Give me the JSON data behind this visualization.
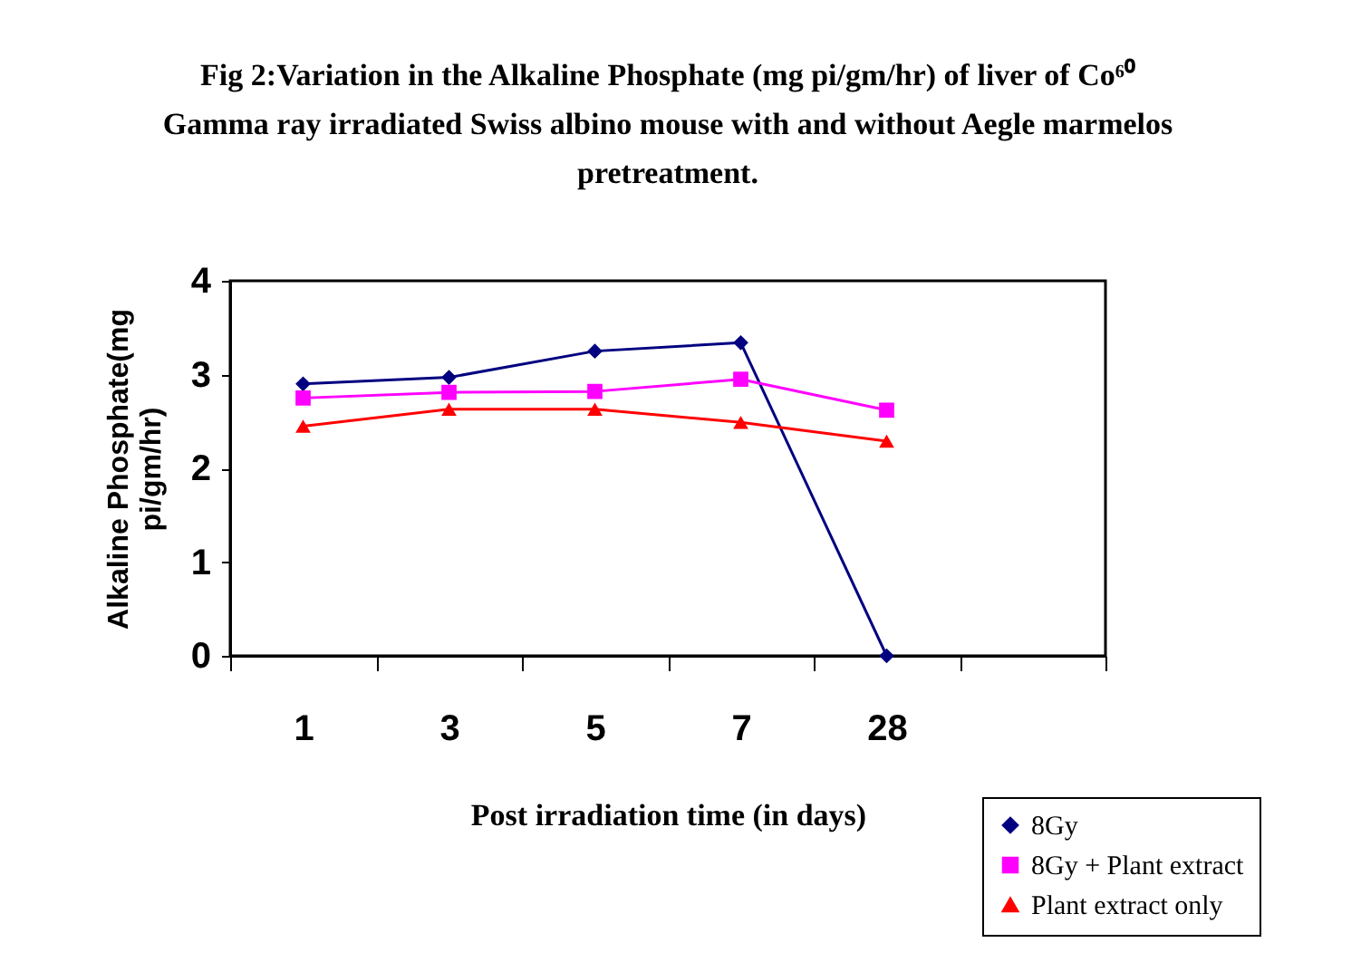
{
  "chart_data": {
    "type": "line",
    "title": "Fig 2:Variation in the Alkaline Phosphate (mg pi/gm/hr) of liver of Co⁶⁰ Gamma ray irradiated Swiss albino mouse with and without Aegle marmelos pretreatment.",
    "xlabel": "Post irradiation time (in days)",
    "ylabel": "Alkaline Phosphate(mg pi/gm/hr)",
    "categories": [
      "1",
      "3",
      "5",
      "7",
      "28",
      null
    ],
    "series": [
      {
        "name": "8Gy",
        "color": "#000080",
        "marker": "diamond",
        "values": [
          2.9,
          2.97,
          3.25,
          3.34,
          0,
          null
        ]
      },
      {
        "name": "8Gy + Plant extract",
        "color": "#ff00ff",
        "marker": "square",
        "values": [
          2.75,
          2.81,
          2.82,
          2.95,
          2.62,
          null
        ]
      },
      {
        "name": "Plant extract only",
        "color": "#ff0000",
        "marker": "triangle",
        "values": [
          2.45,
          2.63,
          2.63,
          2.49,
          2.29,
          null
        ]
      }
    ],
    "ylim": [
      0,
      4
    ],
    "yticks": [
      0,
      1,
      2,
      3,
      4
    ],
    "grid": false,
    "legend": "bottom right",
    "line_style": "solid"
  }
}
